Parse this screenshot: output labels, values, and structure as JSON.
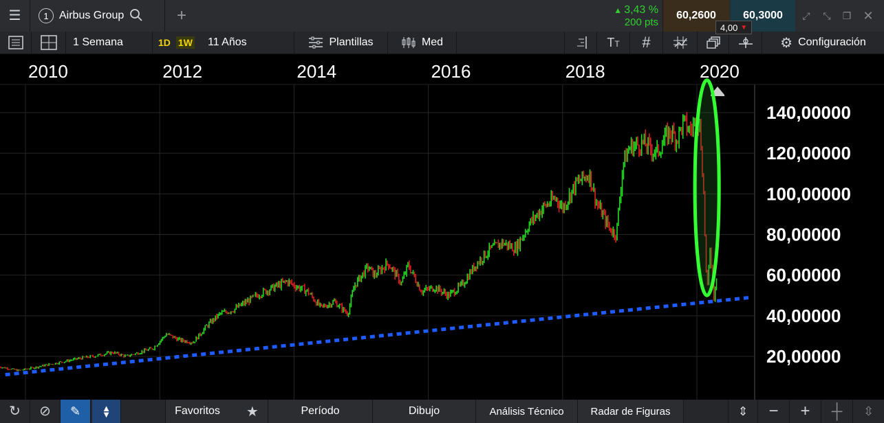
{
  "header": {
    "menu_icon": "menu-icon",
    "instrument_number": "1",
    "instrument_name": "Airbus Group",
    "change_pct": "3,43 %",
    "change_pts": "200 pts",
    "bid": "60,2600",
    "ask": "60,3000",
    "spread": "4,00"
  },
  "toolbar": {
    "period_label": "1 Semana",
    "btn_1d": "1D",
    "btn_1w": "1W",
    "range_label": "11 Años",
    "templates_label": "Plantillas",
    "studies_label": "Med",
    "config_label": "Configuración"
  },
  "bottom": {
    "favorites_label": "Favoritos",
    "period_label": "Período",
    "drawing_label": "Dibujo",
    "analysis_label": "Análisis Técnico",
    "patterns_label": "Radar de Figuras"
  },
  "colors": {
    "up": "#22dd22",
    "down": "#e02020",
    "trend": "#1e5cff",
    "highlight": "#33ff33",
    "accent_yellow": "#f0d400"
  },
  "chart_data": {
    "type": "line",
    "title": "",
    "xlabel": "",
    "ylabel": "",
    "x_ticks": [
      "2010",
      "2012",
      "2014",
      "2016",
      "2018",
      "2020"
    ],
    "y_ticks": [
      "20,00000",
      "40,00000",
      "60,00000",
      "80,00000",
      "100,00000",
      "120,00000",
      "140,00000"
    ],
    "ylim": [
      0,
      155
    ],
    "xlim": [
      2009.6,
      2020.95
    ],
    "grid": true,
    "series": [
      {
        "x": [
          2009.6,
          2009.9,
          2010.2,
          2010.5,
          2010.8,
          2011.0,
          2011.3,
          2011.5,
          2011.7,
          2011.9,
          2012.1,
          2012.3,
          2012.5,
          2012.7,
          2012.9,
          2013.1,
          2013.3,
          2013.5,
          2013.7,
          2013.9,
          2014.0,
          2014.2,
          2014.4,
          2014.6,
          2014.8,
          2014.9,
          2015.1,
          2015.2,
          2015.4,
          2015.6,
          2015.7,
          2015.9,
          2016.1,
          2016.3,
          2016.5,
          2016.7,
          2016.9,
          2017.1,
          2017.3,
          2017.5,
          2017.7,
          2017.9,
          2018.0,
          2018.2,
          2018.4,
          2018.5,
          2018.7,
          2018.8,
          2018.9,
          2019.0,
          2019.2,
          2019.4,
          2019.6,
          2019.7,
          2019.8,
          2019.9,
          2020.0,
          2020.05,
          2020.1,
          2020.15,
          2020.2,
          2020.25,
          2020.3
        ],
        "y": [
          15,
          13,
          15,
          17,
          19,
          20,
          22,
          20,
          22,
          24,
          31,
          28,
          27,
          35,
          41,
          43,
          47,
          51,
          54,
          57,
          55,
          52,
          44,
          47,
          41,
          55,
          64,
          60,
          66,
          56,
          65,
          52,
          54,
          50,
          55,
          65,
          72,
          76,
          73,
          85,
          93,
          98,
          93,
          105,
          110,
          96,
          83,
          80,
          115,
          123,
          125,
          120,
          131,
          127,
          135,
          131,
          137,
          132,
          100,
          50,
          75,
          48,
          62
        ]
      }
    ],
    "trendline": {
      "x": [
        2009.7,
        2020.8
      ],
      "y": [
        11,
        49
      ]
    },
    "annotation": {
      "type": "ellipse",
      "center_x": 2020.15,
      "center_y": 103,
      "rx_years": 0.18,
      "ry": 53
    }
  }
}
